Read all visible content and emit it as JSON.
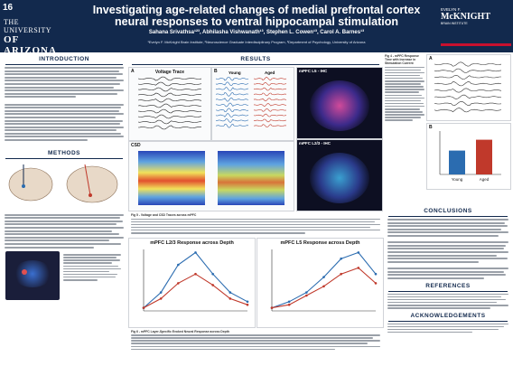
{
  "poster": {
    "number": "16",
    "title": "Investigating age-related changes of medial prefrontal cortex neural responses to ventral hippocampal stimulation",
    "authors": "Sahana Srivathsa¹²³, Abhilasha Vishwanath¹³, Stephen L. Cowen¹³, Carol A. Barnes¹³",
    "affiliations": "¹Evelyn F. McKnight Brain Institute, ²Neuroscience Graduate Interdisciplinary Program, ³Department of Psychology, University of Arizona",
    "uofa_logo": {
      "line1": "THE UNIVERSITY",
      "line2": "OF ARIZONA"
    },
    "mcknight_logo": {
      "line1": "EVELYN F.",
      "line2": "McKNIGHT",
      "line3": "BRAIN INSTITUTE"
    }
  },
  "sections": {
    "introduction": "INTRODUCTION",
    "methods": "METHODS",
    "results": "RESULTS",
    "conclusions": "CONCLUSIONS",
    "references": "REFERENCES",
    "acknowledgements": "ACKNOWLEDGEMENTS"
  },
  "results_panels": {
    "voltage_trace": "Voltage Trace",
    "young_label": "Young",
    "aged_label": "Aged",
    "csd_label": "CSD",
    "mpfc_l5_ihc": "mPFC L5 - IHC",
    "mpfc_l23_ihc": "mPFC L2/3 - IHC",
    "fig5_caption": "Fig 5 - Voltage and CSD Traces across mPFC",
    "fig6_caption": "Fig 6 - mPFC Layer-Specific Evoked Neural Response across Depth",
    "fig4_caption": "Fig 4 - mPFC Response Time with Increase in Stimulation Current"
  },
  "chart_data": [
    {
      "type": "line",
      "title": "mPFC L2/3 Response across Depth",
      "series": [
        {
          "name": "Young",
          "values": [
            0.05,
            0.3,
            0.75,
            0.95,
            0.6,
            0.3,
            0.15
          ]
        },
        {
          "name": "Aged",
          "values": [
            0.05,
            0.2,
            0.45,
            0.6,
            0.42,
            0.2,
            0.1
          ]
        }
      ],
      "x": [
        1,
        2,
        3,
        4,
        5,
        6,
        7
      ]
    },
    {
      "type": "line",
      "title": "mPFC L5 Response across Depth",
      "series": [
        {
          "name": "Young",
          "values": [
            0.05,
            0.15,
            0.3,
            0.55,
            0.85,
            0.95,
            0.6
          ]
        },
        {
          "name": "Aged",
          "values": [
            0.05,
            0.1,
            0.25,
            0.4,
            0.6,
            0.7,
            0.45
          ]
        }
      ],
      "x": [
        1,
        2,
        3,
        4,
        5,
        6,
        7
      ]
    },
    {
      "type": "bar",
      "title": "Response Time",
      "categories": [
        "Young",
        "Aged"
      ],
      "values": [
        0.55,
        0.8
      ]
    }
  ],
  "colors": {
    "header_bg": "#12294d",
    "young": "#2b6cb0",
    "aged": "#c0392b",
    "accent_red": "#c8102e"
  }
}
